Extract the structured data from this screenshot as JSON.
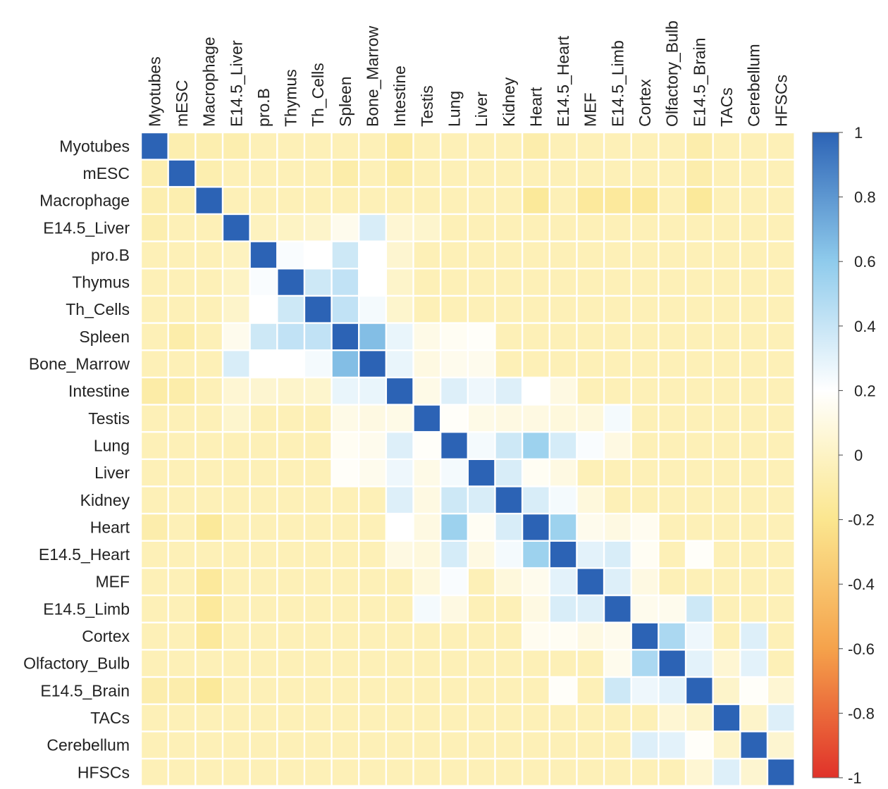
{
  "chart_data": {
    "type": "heatmap",
    "title": "",
    "labels": [
      "Myotubes",
      "mESC",
      "Macrophage",
      "E14.5_Liver",
      "pro.B",
      "Thymus",
      "Th_Cells",
      "Spleen",
      "Bone_Marrow",
      "Intestine",
      "Testis",
      "Lung",
      "Liver",
      "Kidney",
      "Heart",
      "E14.5_Heart",
      "MEF",
      "E14.5_Limb",
      "Cortex",
      "Olfactory_Bulb",
      "E14.5_Brain",
      "TACs",
      "Cerebellum",
      "HFSCs"
    ],
    "value_range": [
      -1,
      1
    ],
    "colorbar": {
      "ticks": [
        "1",
        "0.8",
        "0.6",
        "0.4",
        "0.2",
        "0",
        "-0.2",
        "-0.4",
        "-0.6",
        "-0.8",
        "-1"
      ],
      "tick_values": [
        1,
        0.8,
        0.6,
        0.4,
        0.2,
        0,
        -0.2,
        -0.4,
        -0.6,
        -0.8,
        -1
      ],
      "stops": [
        {
          "value": -1,
          "color": "#e0322a"
        },
        {
          "value": -0.6,
          "color": "#f5a24b"
        },
        {
          "value": -0.2,
          "color": "#fbe68f"
        },
        {
          "value": 0,
          "color": "#fdf3c4"
        },
        {
          "value": 0.2,
          "color": "#ffffff"
        },
        {
          "value": 0.6,
          "color": "#8fcbec"
        },
        {
          "value": 1,
          "color": "#2c63b5"
        }
      ]
    },
    "default_value": -0.05,
    "cells": [
      [
        0,
        0,
        1
      ],
      [
        1,
        1,
        1
      ],
      [
        2,
        2,
        1
      ],
      [
        3,
        3,
        1
      ],
      [
        4,
        4,
        1
      ],
      [
        5,
        5,
        1
      ],
      [
        6,
        6,
        1
      ],
      [
        7,
        7,
        1
      ],
      [
        8,
        8,
        1
      ],
      [
        9,
        9,
        1
      ],
      [
        10,
        10,
        1
      ],
      [
        11,
        11,
        1
      ],
      [
        12,
        12,
        1
      ],
      [
        13,
        13,
        1
      ],
      [
        14,
        14,
        1
      ],
      [
        15,
        15,
        1
      ],
      [
        16,
        16,
        1
      ],
      [
        17,
        17,
        1
      ],
      [
        18,
        18,
        1
      ],
      [
        19,
        19,
        1
      ],
      [
        20,
        20,
        1
      ],
      [
        21,
        21,
        1
      ],
      [
        22,
        22,
        1
      ],
      [
        23,
        23,
        1
      ],
      [
        0,
        1,
        -0.08
      ],
      [
        0,
        2,
        -0.08
      ],
      [
        0,
        3,
        -0.08
      ],
      [
        0,
        9,
        -0.11
      ],
      [
        0,
        14,
        -0.09
      ],
      [
        0,
        20,
        -0.09
      ],
      [
        1,
        2,
        -0.08
      ],
      [
        1,
        7,
        -0.1
      ],
      [
        1,
        9,
        -0.1
      ],
      [
        1,
        20,
        -0.09
      ],
      [
        2,
        14,
        -0.16
      ],
      [
        2,
        16,
        -0.15
      ],
      [
        2,
        17,
        -0.15
      ],
      [
        2,
        18,
        -0.15
      ],
      [
        2,
        20,
        -0.16
      ],
      [
        3,
        4,
        -0.02
      ],
      [
        3,
        5,
        0.0
      ],
      [
        3,
        6,
        0.02
      ],
      [
        3,
        7,
        0.14
      ],
      [
        3,
        8,
        0.34
      ],
      [
        3,
        9,
        0.05
      ],
      [
        3,
        10,
        0.03
      ],
      [
        4,
        5,
        0.22
      ],
      [
        4,
        6,
        0.2
      ],
      [
        4,
        7,
        0.38
      ],
      [
        4,
        8,
        0.2
      ],
      [
        4,
        9,
        0.04
      ],
      [
        5,
        6,
        0.38
      ],
      [
        5,
        7,
        0.42
      ],
      [
        5,
        8,
        0.2
      ],
      [
        5,
        9,
        0.02
      ],
      [
        6,
        7,
        0.42
      ],
      [
        6,
        8,
        0.24
      ],
      [
        6,
        9,
        0.03
      ],
      [
        7,
        8,
        0.65
      ],
      [
        7,
        9,
        0.28
      ],
      [
        7,
        10,
        0.12
      ],
      [
        7,
        11,
        0.16
      ],
      [
        7,
        12,
        0.18
      ],
      [
        8,
        9,
        0.28
      ],
      [
        8,
        10,
        0.1
      ],
      [
        8,
        11,
        0.14
      ],
      [
        8,
        12,
        0.14
      ],
      [
        9,
        10,
        0.12
      ],
      [
        9,
        11,
        0.32
      ],
      [
        9,
        12,
        0.26
      ],
      [
        9,
        13,
        0.32
      ],
      [
        9,
        14,
        0.2
      ],
      [
        9,
        15,
        0.1
      ],
      [
        10,
        11,
        0.18
      ],
      [
        10,
        12,
        0.12
      ],
      [
        10,
        13,
        0.1
      ],
      [
        10,
        14,
        0.1
      ],
      [
        10,
        15,
        0.08
      ],
      [
        10,
        16,
        0.08
      ],
      [
        10,
        17,
        0.24
      ],
      [
        11,
        12,
        0.24
      ],
      [
        11,
        13,
        0.38
      ],
      [
        11,
        14,
        0.55
      ],
      [
        11,
        15,
        0.35
      ],
      [
        11,
        16,
        0.22
      ],
      [
        11,
        17,
        0.1
      ],
      [
        12,
        13,
        0.34
      ],
      [
        12,
        14,
        0.16
      ],
      [
        12,
        15,
        0.1
      ],
      [
        13,
        14,
        0.34
      ],
      [
        13,
        15,
        0.24
      ],
      [
        13,
        16,
        0.08
      ],
      [
        14,
        15,
        0.55
      ],
      [
        14,
        16,
        0.14
      ],
      [
        14,
        17,
        0.1
      ],
      [
        14,
        18,
        0.15
      ],
      [
        15,
        16,
        0.3
      ],
      [
        15,
        17,
        0.34
      ],
      [
        15,
        18,
        0.16
      ],
      [
        15,
        20,
        0.18
      ],
      [
        16,
        17,
        0.32
      ],
      [
        16,
        18,
        0.1
      ],
      [
        17,
        18,
        0.14
      ],
      [
        17,
        19,
        0.14
      ],
      [
        17,
        20,
        0.38
      ],
      [
        18,
        19,
        0.5
      ],
      [
        18,
        20,
        0.26
      ],
      [
        18,
        22,
        0.32
      ],
      [
        19,
        20,
        0.3
      ],
      [
        19,
        22,
        0.3
      ],
      [
        19,
        21,
        0.05
      ],
      [
        20,
        21,
        0.02
      ],
      [
        20,
        22,
        0.18
      ],
      [
        20,
        23,
        0.05
      ],
      [
        21,
        22,
        0.02
      ],
      [
        21,
        23,
        0.32
      ],
      [
        22,
        23,
        0.04
      ]
    ]
  }
}
